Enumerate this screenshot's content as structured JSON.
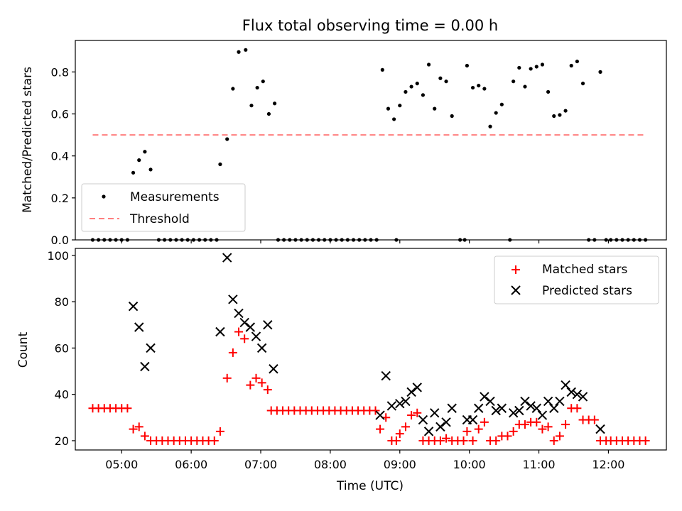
{
  "figure": {
    "title": "Flux total observing time = 0.00 h",
    "xlabel": "Time (UTC)"
  },
  "colors": {
    "measurement": "#000000",
    "threshold": "#ff7f7f",
    "matched": "#ff0000",
    "predicted": "#000000"
  },
  "chart_data": [
    {
      "type": "scatter",
      "panel": "top",
      "ylabel": "Matched/Predicted stars",
      "ylim": [
        0,
        0.95
      ],
      "xlim": [
        "04:20",
        "12:50"
      ],
      "yticks": [
        0.0,
        0.2,
        0.4,
        0.6,
        0.8
      ],
      "ytick_labels": [
        "0.0",
        "0.2",
        "0.4",
        "0.6",
        "0.8"
      ],
      "legend": {
        "position": "lower-left",
        "entries": [
          "Measurements",
          "Threshold"
        ]
      },
      "threshold": {
        "name": "Threshold",
        "y": 0.5,
        "x_start": "04:35",
        "x_end": "12:32",
        "style": "dashed"
      },
      "series": [
        {
          "name": "Measurements",
          "marker": "dot",
          "points": [
            [
              "04:35",
              0
            ],
            [
              "04:40",
              0
            ],
            [
              "04:45",
              0
            ],
            [
              "04:50",
              0
            ],
            [
              "04:55",
              0
            ],
            [
              "05:00",
              0
            ],
            [
              "05:05",
              0
            ],
            [
              "05:10",
              0.32
            ],
            [
              "05:15",
              0.38
            ],
            [
              "05:20",
              0.42
            ],
            [
              "05:25",
              0.335
            ],
            [
              "05:32",
              0
            ],
            [
              "05:37",
              0
            ],
            [
              "05:42",
              0
            ],
            [
              "05:47",
              0
            ],
            [
              "05:52",
              0
            ],
            [
              "05:57",
              0
            ],
            [
              "06:02",
              0
            ],
            [
              "06:07",
              0
            ],
            [
              "06:12",
              0
            ],
            [
              "06:17",
              0
            ],
            [
              "06:22",
              0
            ],
            [
              "06:25",
              0.36
            ],
            [
              "06:31",
              0.48
            ],
            [
              "06:36",
              0.72
            ],
            [
              "06:41",
              0.895
            ],
            [
              "06:47",
              0.905
            ],
            [
              "06:52",
              0.64
            ],
            [
              "06:57",
              0.725
            ],
            [
              "07:02",
              0.755
            ],
            [
              "07:07",
              0.6
            ],
            [
              "07:12",
              0.65
            ],
            [
              "07:15",
              0
            ],
            [
              "07:20",
              0
            ],
            [
              "07:25",
              0
            ],
            [
              "07:30",
              0
            ],
            [
              "07:35",
              0
            ],
            [
              "07:40",
              0
            ],
            [
              "07:45",
              0
            ],
            [
              "07:50",
              0
            ],
            [
              "07:55",
              0
            ],
            [
              "08:00",
              0
            ],
            [
              "08:05",
              0
            ],
            [
              "08:10",
              0
            ],
            [
              "08:15",
              0
            ],
            [
              "08:20",
              0
            ],
            [
              "08:25",
              0
            ],
            [
              "08:30",
              0
            ],
            [
              "08:35",
              0
            ],
            [
              "08:40",
              0
            ],
            [
              "08:45",
              0.81
            ],
            [
              "08:50",
              0.625
            ],
            [
              "08:55",
              0.575
            ],
            [
              "08:57",
              0
            ],
            [
              "09:00",
              0.64
            ],
            [
              "09:05",
              0.705
            ],
            [
              "09:10",
              0.73
            ],
            [
              "09:15",
              0.745
            ],
            [
              "09:20",
              0.69
            ],
            [
              "09:25",
              0.835
            ],
            [
              "09:30",
              0.625
            ],
            [
              "09:35",
              0.77
            ],
            [
              "09:40",
              0.755
            ],
            [
              "09:45",
              0.59
            ],
            [
              "09:52",
              0
            ],
            [
              "09:56",
              0
            ],
            [
              "09:58",
              0.83
            ],
            [
              "10:03",
              0.725
            ],
            [
              "10:08",
              0.735
            ],
            [
              "10:13",
              0.72
            ],
            [
              "10:18",
              0.54
            ],
            [
              "10:23",
              0.605
            ],
            [
              "10:28",
              0.645
            ],
            [
              "10:35",
              0
            ],
            [
              "10:38",
              0.755
            ],
            [
              "10:43",
              0.82
            ],
            [
              "10:48",
              0.73
            ],
            [
              "10:53",
              0.815
            ],
            [
              "10:58",
              0.825
            ],
            [
              "11:03",
              0.835
            ],
            [
              "11:08",
              0.705
            ],
            [
              "11:13",
              0.59
            ],
            [
              "11:18",
              0.595
            ],
            [
              "11:23",
              0.615
            ],
            [
              "11:28",
              0.83
            ],
            [
              "11:33",
              0.85
            ],
            [
              "11:38",
              0.745
            ],
            [
              "11:43",
              0
            ],
            [
              "11:48",
              0
            ],
            [
              "11:53",
              0.8
            ],
            [
              "11:58",
              0
            ],
            [
              "12:02",
              0
            ],
            [
              "12:07",
              0
            ],
            [
              "12:12",
              0
            ],
            [
              "12:17",
              0
            ],
            [
              "12:22",
              0
            ],
            [
              "12:27",
              0
            ],
            [
              "12:32",
              0
            ]
          ]
        }
      ]
    },
    {
      "type": "scatter",
      "panel": "bottom",
      "ylabel": "Count",
      "xlabel": "Time (UTC)",
      "ylim": [
        16,
        103
      ],
      "xlim": [
        "04:20",
        "12:50"
      ],
      "yticks": [
        20,
        40,
        60,
        80,
        100
      ],
      "ytick_labels": [
        "20",
        "40",
        "60",
        "80",
        "100"
      ],
      "xticks": [
        "05:00",
        "06:00",
        "07:00",
        "08:00",
        "09:00",
        "10:00",
        "11:00",
        "12:00"
      ],
      "xtick_labels": [
        "05:00",
        "06:00",
        "07:00",
        "08:00",
        "09:00",
        "10:00",
        "11:00",
        "12:00"
      ],
      "legend": {
        "position": "upper-right",
        "entries": [
          "Matched stars",
          "Predicted stars"
        ]
      },
      "series": [
        {
          "name": "Matched stars",
          "marker": "plus",
          "points": [
            [
              "04:35",
              34
            ],
            [
              "04:40",
              34
            ],
            [
              "04:45",
              34
            ],
            [
              "04:50",
              34
            ],
            [
              "04:55",
              34
            ],
            [
              "05:00",
              34
            ],
            [
              "05:05",
              34
            ],
            [
              "05:10",
              25
            ],
            [
              "05:15",
              26
            ],
            [
              "05:20",
              22
            ],
            [
              "05:25",
              20
            ],
            [
              "05:30",
              20
            ],
            [
              "05:35",
              20
            ],
            [
              "05:40",
              20
            ],
            [
              "05:45",
              20
            ],
            [
              "05:50",
              20
            ],
            [
              "05:55",
              20
            ],
            [
              "06:00",
              20
            ],
            [
              "06:05",
              20
            ],
            [
              "06:10",
              20
            ],
            [
              "06:15",
              20
            ],
            [
              "06:20",
              20
            ],
            [
              "06:25",
              24
            ],
            [
              "06:31",
              47
            ],
            [
              "06:36",
              58
            ],
            [
              "06:41",
              67
            ],
            [
              "06:46",
              64
            ],
            [
              "06:51",
              44
            ],
            [
              "06:56",
              47
            ],
            [
              "07:01",
              45
            ],
            [
              "07:06",
              42
            ],
            [
              "07:09",
              33
            ],
            [
              "07:14",
              33
            ],
            [
              "07:19",
              33
            ],
            [
              "07:24",
              33
            ],
            [
              "07:29",
              33
            ],
            [
              "07:34",
              33
            ],
            [
              "07:39",
              33
            ],
            [
              "07:44",
              33
            ],
            [
              "07:49",
              33
            ],
            [
              "07:54",
              33
            ],
            [
              "07:59",
              33
            ],
            [
              "08:04",
              33
            ],
            [
              "08:09",
              33
            ],
            [
              "08:14",
              33
            ],
            [
              "08:19",
              33
            ],
            [
              "08:24",
              33
            ],
            [
              "08:29",
              33
            ],
            [
              "08:34",
              33
            ],
            [
              "08:39",
              33
            ],
            [
              "08:43",
              25
            ],
            [
              "08:48",
              30
            ],
            [
              "08:53",
              20
            ],
            [
              "08:57",
              20
            ],
            [
              "09:00",
              23
            ],
            [
              "09:05",
              26
            ],
            [
              "09:10",
              31
            ],
            [
              "09:15",
              32
            ],
            [
              "09:20",
              20
            ],
            [
              "09:25",
              20
            ],
            [
              "09:30",
              20
            ],
            [
              "09:35",
              20
            ],
            [
              "09:40",
              21
            ],
            [
              "09:45",
              20
            ],
            [
              "09:50",
              20
            ],
            [
              "09:55",
              20
            ],
            [
              "09:58",
              24
            ],
            [
              "10:03",
              20
            ],
            [
              "10:08",
              25
            ],
            [
              "10:13",
              28
            ],
            [
              "10:18",
              20
            ],
            [
              "10:23",
              20
            ],
            [
              "10:28",
              22
            ],
            [
              "10:33",
              22
            ],
            [
              "10:38",
              24
            ],
            [
              "10:43",
              27
            ],
            [
              "10:48",
              27
            ],
            [
              "10:53",
              28
            ],
            [
              "10:58",
              28
            ],
            [
              "11:03",
              25
            ],
            [
              "11:08",
              26
            ],
            [
              "11:13",
              20
            ],
            [
              "11:18",
              22
            ],
            [
              "11:23",
              27
            ],
            [
              "11:28",
              34
            ],
            [
              "11:33",
              34
            ],
            [
              "11:38",
              29
            ],
            [
              "11:43",
              29
            ],
            [
              "11:48",
              29
            ],
            [
              "11:53",
              20
            ],
            [
              "11:58",
              20
            ],
            [
              "12:02",
              20
            ],
            [
              "12:07",
              20
            ],
            [
              "12:12",
              20
            ],
            [
              "12:17",
              20
            ],
            [
              "12:22",
              20
            ],
            [
              "12:27",
              20
            ],
            [
              "12:32",
              20
            ]
          ]
        },
        {
          "name": "Predicted stars",
          "marker": "x",
          "points": [
            [
              "05:10",
              78
            ],
            [
              "05:15",
              69
            ],
            [
              "05:20",
              52
            ],
            [
              "05:25",
              60
            ],
            [
              "06:25",
              67
            ],
            [
              "06:31",
              99
            ],
            [
              "06:36",
              81
            ],
            [
              "06:41",
              75
            ],
            [
              "06:46",
              71
            ],
            [
              "06:51",
              69
            ],
            [
              "06:56",
              65
            ],
            [
              "07:01",
              60
            ],
            [
              "07:06",
              70
            ],
            [
              "07:11",
              51
            ],
            [
              "08:43",
              31
            ],
            [
              "08:48",
              48
            ],
            [
              "08:53",
              35
            ],
            [
              "09:00",
              36
            ],
            [
              "09:05",
              37
            ],
            [
              "09:10",
              41
            ],
            [
              "09:15",
              43
            ],
            [
              "09:20",
              29
            ],
            [
              "09:25",
              24
            ],
            [
              "09:30",
              32
            ],
            [
              "09:35",
              26
            ],
            [
              "09:40",
              28
            ],
            [
              "09:45",
              34
            ],
            [
              "09:58",
              29
            ],
            [
              "10:03",
              29
            ],
            [
              "10:08",
              34
            ],
            [
              "10:13",
              39
            ],
            [
              "10:18",
              37
            ],
            [
              "10:23",
              33
            ],
            [
              "10:28",
              34
            ],
            [
              "10:38",
              32
            ],
            [
              "10:43",
              33
            ],
            [
              "10:48",
              37
            ],
            [
              "10:53",
              35
            ],
            [
              "10:58",
              34
            ],
            [
              "11:03",
              31
            ],
            [
              "11:08",
              37
            ],
            [
              "11:13",
              34
            ],
            [
              "11:18",
              37
            ],
            [
              "11:23",
              44
            ],
            [
              "11:28",
              41
            ],
            [
              "11:33",
              40
            ],
            [
              "11:38",
              39
            ],
            [
              "11:53",
              25
            ]
          ]
        }
      ]
    }
  ]
}
